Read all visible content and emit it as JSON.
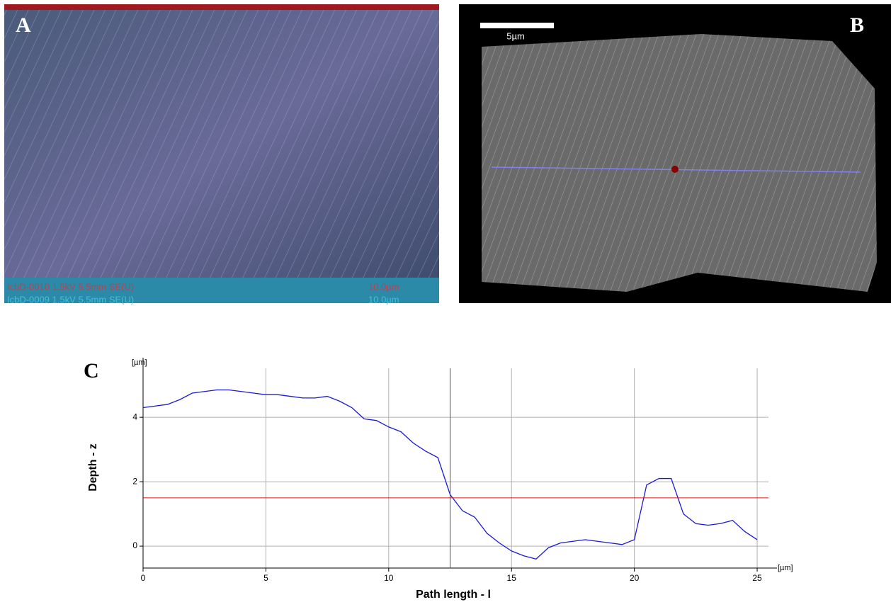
{
  "panels": {
    "a": {
      "letter": "A",
      "footer_1": "IcbD-0010 1.5kV 5.5mm SE(U)",
      "scale_1": "10.0µm",
      "footer_2": "IcbD-0009 1.5kV 5.5mm SE(U)",
      "scale_2": "10.0µm"
    },
    "b": {
      "letter": "B",
      "scale_bar": "5µm"
    },
    "c": {
      "letter": "C"
    }
  },
  "chart_data": {
    "type": "line",
    "x_label": "Path length - l",
    "y_label": "Depth - z",
    "x_unit": "[µm]",
    "y_unit": "[µm]",
    "x": [
      0,
      0.5,
      1,
      1.5,
      2,
      2.5,
      3,
      3.5,
      4,
      4.5,
      5,
      5.5,
      6,
      6.5,
      7,
      7.5,
      8,
      8.5,
      9,
      9.5,
      10,
      10.5,
      11,
      11.5,
      12,
      12.5,
      13,
      13.5,
      14,
      14.5,
      15,
      15.5,
      16,
      16.5,
      17,
      17.5,
      18,
      18.5,
      19,
      19.5,
      20,
      20.5,
      21,
      21.5,
      22,
      22.5,
      23,
      23.5,
      24,
      24.5,
      25
    ],
    "series": [
      {
        "color": "#1a1ad6",
        "values": [
          4.3,
          4.35,
          4.4,
          4.55,
          4.75,
          4.8,
          4.85,
          4.85,
          4.8,
          4.75,
          4.7,
          4.7,
          4.65,
          4.6,
          4.6,
          4.65,
          4.5,
          4.3,
          3.95,
          3.9,
          3.7,
          3.55,
          3.2,
          2.95,
          2.75,
          1.6,
          1.1,
          0.9,
          0.4,
          0.1,
          -0.15,
          -0.3,
          -0.4,
          -0.05,
          0.1,
          0.15,
          0.2,
          0.15,
          0.1,
          0.05,
          0.2,
          1.9,
          2.1,
          2.1,
          1.0,
          0.7,
          0.65,
          0.7,
          0.8,
          0.45,
          0.2
        ]
      }
    ],
    "xlim": [
      0,
      25.46
    ],
    "ylim": [
      -0.68,
      5.52
    ],
    "xticks": [
      0,
      5,
      10,
      15,
      20,
      25
    ],
    "yticks": [
      0,
      2,
      4
    ],
    "grid": true,
    "cursor": {
      "x": 12.5,
      "y": 1.5,
      "color": "#e01010"
    }
  }
}
